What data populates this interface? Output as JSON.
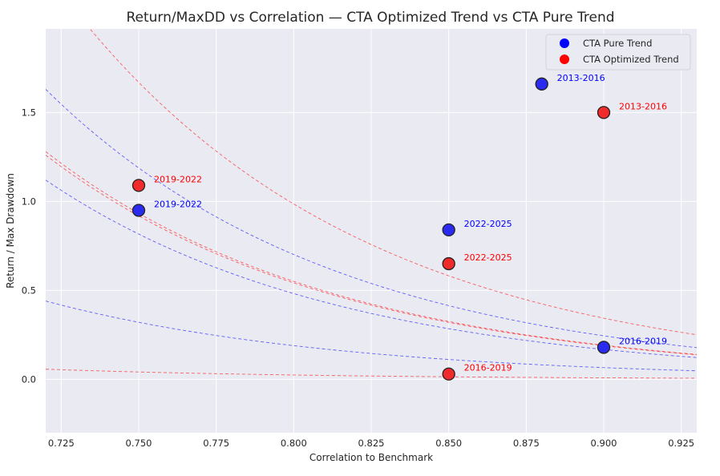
{
  "chart_data": {
    "type": "scatter",
    "title": "Return/MaxDD vs Correlation — CTA Optimized Trend vs CTA Pure Trend",
    "xlabel": "Correlation to Benchmark",
    "ylabel": "Return / Max Drawdown",
    "xlim": [
      0.72,
      0.93
    ],
    "ylim": [
      -0.3,
      1.97
    ],
    "xticks": [
      "0.725",
      "0.750",
      "0.775",
      "0.800",
      "0.825",
      "0.850",
      "0.875",
      "0.900",
      "0.925"
    ],
    "xtick_values": [
      0.725,
      0.75,
      0.775,
      0.8,
      0.825,
      0.85,
      0.875,
      0.9,
      0.925
    ],
    "yticks": [
      "0.0",
      "0.5",
      "1.0",
      "1.5"
    ],
    "ytick_values": [
      0.0,
      0.5,
      1.0,
      1.5
    ],
    "grid": true,
    "legend_position": "top-right",
    "series": [
      {
        "name": "CTA Pure Trend",
        "color": "#0000ff",
        "marker_color": "#2b2bf0",
        "points": [
          {
            "label": "2013-2016",
            "x": 0.88,
            "y": 1.66
          },
          {
            "label": "2019-2022",
            "x": 0.75,
            "y": 0.95
          },
          {
            "label": "2022-2025",
            "x": 0.85,
            "y": 0.84
          },
          {
            "label": "2016-2019",
            "x": 0.9,
            "y": 0.18
          }
        ]
      },
      {
        "name": "CTA Optimized Trend",
        "color": "#ff0000",
        "marker_color": "#f02b2b",
        "points": [
          {
            "label": "2013-2016",
            "x": 0.9,
            "y": 1.5
          },
          {
            "label": "2019-2022",
            "x": 0.75,
            "y": 1.09
          },
          {
            "label": "2022-2025",
            "x": 0.85,
            "y": 0.65
          },
          {
            "label": "2016-2019",
            "x": 0.85,
            "y": 0.03
          }
        ]
      }
    ],
    "curves": {
      "form": "y = k * 0.9^((x - 0.72) / 0.01)",
      "pure_k": [
        1.63,
        1.12,
        0.44
      ],
      "optimized_k": [
        2.29,
        1.28,
        1.26,
        0.057
      ]
    }
  }
}
